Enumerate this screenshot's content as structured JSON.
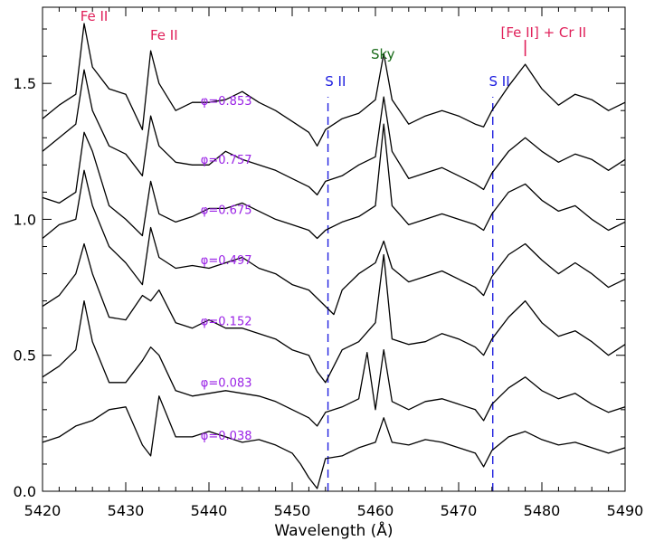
{
  "chart_data": {
    "type": "line",
    "title": "",
    "xlabel": "Wavelength (Å)",
    "ylabel": "",
    "xlim": [
      5420,
      5490
    ],
    "ylim": [
      0.0,
      1.78
    ],
    "x_ticks": [
      5420,
      5430,
      5440,
      5450,
      5460,
      5470,
      5480,
      5490
    ],
    "x_tick_labels": [
      "5420",
      "5430",
      "5440",
      "5450",
      "5460",
      "5470",
      "5480",
      "5490"
    ],
    "y_ticks": [
      0.0,
      0.5,
      1.0,
      1.5
    ],
    "y_tick_labels": [
      "0.0",
      "0.5",
      "1.0",
      "1.5"
    ],
    "grid": false,
    "series": [
      {
        "name": "φ=0.853",
        "color": "#000000",
        "label_x": 5439,
        "label_y": 1.42,
        "x": [
          5420,
          5422,
          5424,
          5425,
          5426,
          5428,
          5430,
          5432,
          5433,
          5434,
          5436,
          5438,
          5440,
          5442,
          5444,
          5446,
          5448,
          5450,
          5452,
          5453,
          5454,
          5456,
          5458,
          5460,
          5461,
          5462,
          5464,
          5466,
          5468,
          5470,
          5472,
          5473,
          5474,
          5476,
          5478,
          5480,
          5482,
          5484,
          5486,
          5488,
          5490
        ],
        "y": [
          1.37,
          1.42,
          1.46,
          1.72,
          1.56,
          1.48,
          1.46,
          1.33,
          1.62,
          1.5,
          1.4,
          1.43,
          1.43,
          1.44,
          1.47,
          1.43,
          1.4,
          1.36,
          1.32,
          1.27,
          1.33,
          1.37,
          1.39,
          1.44,
          1.61,
          1.44,
          1.35,
          1.38,
          1.4,
          1.38,
          1.35,
          1.34,
          1.4,
          1.49,
          1.57,
          1.48,
          1.42,
          1.46,
          1.44,
          1.4,
          1.43
        ]
      },
      {
        "name": "φ=0.757",
        "color": "#000000",
        "label_x": 5439,
        "label_y": 1.205,
        "x": [
          5420,
          5422,
          5424,
          5425,
          5426,
          5428,
          5430,
          5432,
          5433,
          5434,
          5436,
          5438,
          5440,
          5442,
          5444,
          5446,
          5448,
          5450,
          5452,
          5453,
          5454,
          5456,
          5458,
          5460,
          5461,
          5462,
          5464,
          5466,
          5468,
          5470,
          5472,
          5473,
          5474,
          5476,
          5478,
          5480,
          5482,
          5484,
          5486,
          5488,
          5490
        ],
        "y": [
          1.25,
          1.3,
          1.35,
          1.55,
          1.4,
          1.27,
          1.24,
          1.16,
          1.38,
          1.27,
          1.21,
          1.2,
          1.2,
          1.25,
          1.22,
          1.2,
          1.18,
          1.15,
          1.12,
          1.09,
          1.14,
          1.16,
          1.2,
          1.23,
          1.45,
          1.25,
          1.15,
          1.17,
          1.19,
          1.16,
          1.13,
          1.11,
          1.17,
          1.25,
          1.3,
          1.25,
          1.21,
          1.24,
          1.22,
          1.18,
          1.22
        ]
      },
      {
        "name": "φ=0.675",
        "color": "#000000",
        "label_x": 5439,
        "label_y": 1.02,
        "x": [
          5420,
          5422,
          5424,
          5425,
          5426,
          5428,
          5430,
          5432,
          5433,
          5434,
          5436,
          5438,
          5440,
          5442,
          5444,
          5446,
          5448,
          5450,
          5452,
          5453,
          5454,
          5456,
          5458,
          5460,
          5461,
          5462,
          5464,
          5466,
          5468,
          5470,
          5472,
          5473,
          5474,
          5476,
          5478,
          5480,
          5482,
          5484,
          5486,
          5488,
          5490
        ],
        "y": [
          1.08,
          1.06,
          1.1,
          1.32,
          1.25,
          1.05,
          1.0,
          0.94,
          1.14,
          1.02,
          0.99,
          1.01,
          1.04,
          1.04,
          1.06,
          1.03,
          1.0,
          0.98,
          0.96,
          0.93,
          0.96,
          0.99,
          1.01,
          1.05,
          1.35,
          1.05,
          0.98,
          1.0,
          1.02,
          1.0,
          0.98,
          0.96,
          1.02,
          1.1,
          1.13,
          1.07,
          1.03,
          1.05,
          1.0,
          0.96,
          0.99
        ]
      },
      {
        "name": "φ=0.497",
        "color": "#000000",
        "label_x": 5439,
        "label_y": 0.835,
        "x": [
          5420,
          5422,
          5424,
          5425,
          5426,
          5428,
          5430,
          5432,
          5433,
          5434,
          5436,
          5438,
          5440,
          5442,
          5444,
          5446,
          5448,
          5450,
          5452,
          5453,
          5454,
          5455,
          5456,
          5458,
          5460,
          5461,
          5462,
          5464,
          5466,
          5468,
          5470,
          5472,
          5473,
          5474,
          5476,
          5478,
          5480,
          5482,
          5484,
          5486,
          5488,
          5490
        ],
        "y": [
          0.93,
          0.98,
          1.0,
          1.18,
          1.05,
          0.9,
          0.84,
          0.76,
          0.97,
          0.86,
          0.82,
          0.83,
          0.82,
          0.84,
          0.86,
          0.82,
          0.8,
          0.76,
          0.74,
          0.71,
          0.68,
          0.65,
          0.74,
          0.8,
          0.84,
          0.92,
          0.82,
          0.77,
          0.79,
          0.81,
          0.78,
          0.75,
          0.72,
          0.79,
          0.87,
          0.91,
          0.85,
          0.8,
          0.84,
          0.8,
          0.75,
          0.78
        ]
      },
      {
        "name": "φ=0.152",
        "color": "#000000",
        "label_x": 5439,
        "label_y": 0.61,
        "x": [
          5420,
          5422,
          5424,
          5425,
          5426,
          5428,
          5430,
          5432,
          5433,
          5434,
          5436,
          5438,
          5440,
          5442,
          5444,
          5446,
          5448,
          5450,
          5452,
          5453,
          5454,
          5456,
          5458,
          5460,
          5461,
          5462,
          5464,
          5466,
          5468,
          5470,
          5472,
          5473,
          5474,
          5476,
          5478,
          5480,
          5482,
          5484,
          5486,
          5488,
          5490
        ],
        "y": [
          0.68,
          0.72,
          0.8,
          0.91,
          0.8,
          0.64,
          0.63,
          0.72,
          0.7,
          0.74,
          0.62,
          0.6,
          0.63,
          0.6,
          0.6,
          0.58,
          0.56,
          0.52,
          0.5,
          0.44,
          0.4,
          0.52,
          0.55,
          0.62,
          0.87,
          0.56,
          0.54,
          0.55,
          0.58,
          0.56,
          0.53,
          0.5,
          0.56,
          0.64,
          0.7,
          0.62,
          0.57,
          0.59,
          0.55,
          0.5,
          0.54
        ]
      },
      {
        "name": "φ=0.083",
        "color": "#000000",
        "label_x": 5439,
        "label_y": 0.385,
        "x": [
          5420,
          5422,
          5424,
          5425,
          5426,
          5428,
          5430,
          5432,
          5433,
          5434,
          5436,
          5438,
          5440,
          5442,
          5444,
          5446,
          5448,
          5450,
          5452,
          5453,
          5454,
          5456,
          5458,
          5459,
          5460,
          5461,
          5462,
          5464,
          5466,
          5468,
          5470,
          5472,
          5473,
          5474,
          5476,
          5478,
          5480,
          5482,
          5484,
          5486,
          5488,
          5490
        ],
        "y": [
          0.42,
          0.46,
          0.52,
          0.7,
          0.55,
          0.4,
          0.4,
          0.48,
          0.53,
          0.5,
          0.37,
          0.35,
          0.36,
          0.37,
          0.36,
          0.35,
          0.33,
          0.3,
          0.27,
          0.24,
          0.29,
          0.31,
          0.34,
          0.51,
          0.3,
          0.52,
          0.33,
          0.3,
          0.33,
          0.34,
          0.32,
          0.3,
          0.26,
          0.32,
          0.38,
          0.42,
          0.37,
          0.34,
          0.36,
          0.32,
          0.29,
          0.31
        ]
      },
      {
        "name": "φ=0.038",
        "color": "#000000",
        "label_x": 5439,
        "label_y": 0.19,
        "x": [
          5420,
          5422,
          5424,
          5426,
          5428,
          5430,
          5432,
          5433,
          5434,
          5436,
          5438,
          5440,
          5442,
          5444,
          5446,
          5448,
          5450,
          5451,
          5452,
          5453,
          5454,
          5456,
          5458,
          5460,
          5461,
          5462,
          5464,
          5466,
          5468,
          5470,
          5472,
          5473,
          5474,
          5476,
          5478,
          5480,
          5482,
          5484,
          5486,
          5488,
          5490
        ],
        "y": [
          0.18,
          0.2,
          0.24,
          0.26,
          0.3,
          0.31,
          0.17,
          0.13,
          0.35,
          0.2,
          0.2,
          0.22,
          0.2,
          0.18,
          0.19,
          0.17,
          0.14,
          0.1,
          0.05,
          0.01,
          0.12,
          0.13,
          0.16,
          0.18,
          0.27,
          0.18,
          0.17,
          0.19,
          0.18,
          0.16,
          0.14,
          0.09,
          0.15,
          0.2,
          0.22,
          0.19,
          0.17,
          0.18,
          0.16,
          0.14,
          0.16
        ]
      }
    ],
    "vlines": [
      {
        "x": 5454.3,
        "y0": 0.0,
        "y1": 1.45,
        "color": "#2020e0",
        "style": "dashed"
      },
      {
        "x": 5474.1,
        "y0": 0.0,
        "y1": 1.45,
        "color": "#2020e0",
        "style": "dashed"
      }
    ],
    "annotations": [
      {
        "text": "Fe II",
        "x": 5426.2,
        "y": 1.73,
        "color": "#e0205a"
      },
      {
        "text": "Fe II",
        "x": 5434.6,
        "y": 1.66,
        "color": "#e0205a"
      },
      {
        "text": "Sky",
        "x": 5460.9,
        "y": 1.59,
        "color": "#1a6b1a"
      },
      {
        "text": "S II",
        "x": 5455.2,
        "y": 1.49,
        "color": "#2020e0"
      },
      {
        "text": "S II",
        "x": 5474.9,
        "y": 1.49,
        "color": "#2020e0"
      },
      {
        "text": "[Fe II] + Cr II",
        "x": 5480.2,
        "y": 1.67,
        "color": "#e0205a"
      }
    ],
    "marker": {
      "x": 5478,
      "y0": 1.6,
      "y1": 1.66,
      "color": "#e0205a"
    },
    "label_color": "#9a22e6"
  }
}
